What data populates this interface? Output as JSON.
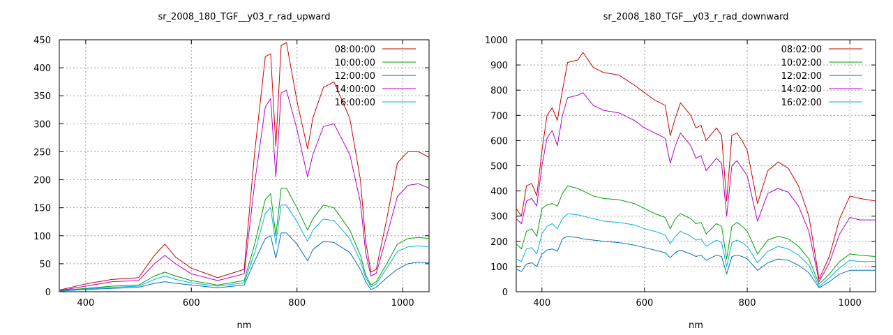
{
  "chart_data": [
    {
      "type": "line",
      "title": "sr_2008_180_TGF__y03_r_rad_upward",
      "xlabel": "nm",
      "ylabel": "",
      "xlim": [
        350,
        1050
      ],
      "ylim": [
        0,
        450
      ],
      "xticks": [
        400,
        600,
        800,
        1000
      ],
      "yticks": [
        0,
        50,
        100,
        150,
        200,
        250,
        300,
        350,
        400,
        450
      ],
      "grid": true,
      "legend_position": "top-right",
      "x": [
        350,
        400,
        450,
        500,
        530,
        550,
        570,
        600,
        650,
        700,
        720,
        740,
        750,
        760,
        770,
        780,
        800,
        820,
        830,
        850,
        870,
        900,
        920,
        930,
        940,
        950,
        970,
        990,
        1010,
        1030,
        1050
      ],
      "series": [
        {
          "name": "08:00:00",
          "color": "#cc0000",
          "values": [
            3,
            14,
            22,
            25,
            65,
            85,
            62,
            42,
            25,
            40,
            250,
            420,
            425,
            260,
            440,
            445,
            340,
            255,
            310,
            365,
            375,
            310,
            200,
            90,
            35,
            40,
            130,
            230,
            250,
            250,
            240
          ]
        },
        {
          "name": "10:00:00",
          "color": "#00a000",
          "values": [
            2,
            6,
            10,
            12,
            28,
            35,
            28,
            20,
            12,
            20,
            85,
            165,
            175,
            100,
            185,
            185,
            150,
            110,
            130,
            155,
            150,
            110,
            65,
            30,
            12,
            18,
            50,
            85,
            95,
            97,
            95
          ]
        },
        {
          "name": "12:00:00",
          "color": "#0070c0",
          "values": [
            1,
            4,
            6,
            8,
            15,
            18,
            15,
            12,
            7,
            12,
            55,
            95,
            100,
            60,
            105,
            105,
            85,
            55,
            75,
            90,
            88,
            70,
            40,
            18,
            4,
            8,
            25,
            40,
            50,
            53,
            52
          ]
        },
        {
          "name": "14:00:00",
          "color": "#b000d0",
          "values": [
            2,
            10,
            18,
            20,
            50,
            65,
            50,
            32,
            20,
            32,
            195,
            330,
            345,
            205,
            355,
            360,
            290,
            205,
            245,
            295,
            300,
            245,
            160,
            70,
            28,
            33,
            100,
            170,
            190,
            193,
            185
          ]
        },
        {
          "name": "16:00:00",
          "color": "#00b0e0",
          "values": [
            1,
            5,
            8,
            10,
            22,
            28,
            22,
            16,
            10,
            16,
            70,
            140,
            150,
            85,
            155,
            155,
            125,
            90,
            110,
            130,
            127,
            95,
            55,
            25,
            9,
            14,
            42,
            72,
            80,
            82,
            80
          ]
        }
      ]
    },
    {
      "type": "line",
      "title": "sr_2008_180_TGF__y03_r_rad_downward",
      "xlabel": "nm",
      "ylabel": "",
      "xlim": [
        350,
        1050
      ],
      "ylim": [
        0,
        1000
      ],
      "xticks": [
        400,
        600,
        800,
        1000
      ],
      "yticks": [
        0,
        100,
        200,
        300,
        400,
        500,
        600,
        700,
        800,
        900,
        1000
      ],
      "grid": true,
      "legend_position": "top-right",
      "x": [
        350,
        360,
        370,
        380,
        390,
        400,
        410,
        420,
        430,
        440,
        450,
        470,
        480,
        500,
        520,
        550,
        580,
        600,
        620,
        640,
        650,
        660,
        670,
        690,
        700,
        710,
        720,
        740,
        750,
        760,
        770,
        780,
        790,
        800,
        820,
        840,
        860,
        880,
        900,
        920,
        940,
        960,
        980,
        1000,
        1020,
        1050
      ],
      "series": [
        {
          "name": "08:02:00",
          "color": "#cc0000",
          "values": [
            330,
            300,
            420,
            430,
            380,
            560,
            700,
            730,
            680,
            800,
            910,
            920,
            950,
            890,
            870,
            860,
            820,
            790,
            760,
            740,
            620,
            690,
            750,
            700,
            650,
            660,
            600,
            650,
            620,
            360,
            620,
            630,
            600,
            560,
            350,
            480,
            515,
            490,
            420,
            300,
            50,
            140,
            290,
            380,
            370,
            360
          ]
        },
        {
          "name": "10:02:00",
          "color": "#00a000",
          "values": [
            190,
            170,
            240,
            250,
            220,
            330,
            345,
            350,
            340,
            390,
            420,
            410,
            400,
            380,
            370,
            365,
            350,
            330,
            310,
            295,
            250,
            290,
            310,
            290,
            270,
            275,
            230,
            270,
            260,
            130,
            260,
            275,
            260,
            240,
            150,
            205,
            220,
            210,
            180,
            130,
            30,
            70,
            120,
            150,
            145,
            140
          ]
        },
        {
          "name": "12:02:00",
          "color": "#0070c0",
          "values": [
            90,
            80,
            110,
            115,
            100,
            150,
            165,
            170,
            160,
            210,
            220,
            215,
            210,
            205,
            200,
            195,
            185,
            175,
            165,
            155,
            135,
            155,
            165,
            150,
            140,
            145,
            125,
            145,
            140,
            70,
            140,
            145,
            140,
            130,
            85,
            115,
            130,
            125,
            105,
            75,
            15,
            40,
            70,
            85,
            85,
            85
          ]
        },
        {
          "name": "14:02:00",
          "color": "#b000d0",
          "values": [
            290,
            270,
            360,
            370,
            340,
            500,
            610,
            640,
            580,
            700,
            770,
            780,
            790,
            740,
            720,
            710,
            680,
            650,
            630,
            610,
            510,
            580,
            630,
            580,
            530,
            540,
            480,
            530,
            510,
            300,
            500,
            520,
            490,
            460,
            280,
            390,
            410,
            395,
            340,
            240,
            40,
            115,
            230,
            295,
            285,
            285
          ]
        },
        {
          "name": "16:02:00",
          "color": "#00b0e0",
          "values": [
            130,
            120,
            170,
            175,
            150,
            230,
            260,
            270,
            250,
            290,
            310,
            305,
            300,
            290,
            280,
            275,
            265,
            250,
            240,
            225,
            190,
            220,
            240,
            220,
            205,
            210,
            180,
            205,
            195,
            100,
            195,
            205,
            195,
            180,
            115,
            160,
            180,
            170,
            145,
            105,
            20,
            55,
            95,
            125,
            120,
            120
          ]
        }
      ]
    }
  ]
}
